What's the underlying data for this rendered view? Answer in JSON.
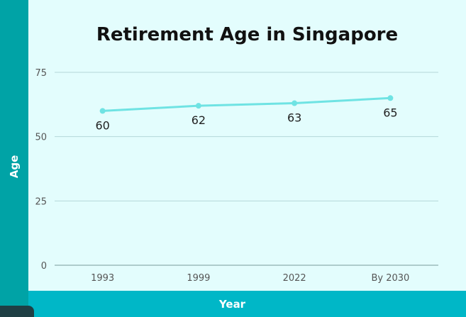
{
  "chart_data": {
    "type": "line",
    "title": "Retirement Age in Singapore",
    "xlabel": "Year",
    "ylabel": "Age",
    "categories": [
      "1993",
      "1999",
      "2022",
      "By 2030"
    ],
    "series": [
      {
        "values": [
          60,
          62,
          63,
          65
        ]
      }
    ],
    "ylim": [
      0,
      75
    ],
    "yticks": [
      0,
      25,
      50,
      75
    ],
    "grid": true,
    "legend": "none",
    "colors": {
      "line": "#6fe3e3",
      "background": "#e3fdfd",
      "y_band": "#00a3a6",
      "x_band": "#00b7c7"
    }
  }
}
